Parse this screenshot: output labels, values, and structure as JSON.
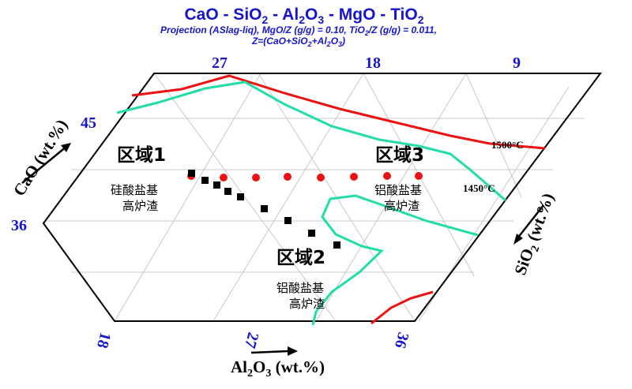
{
  "header": {
    "title_parts": [
      "CaO - SiO",
      "2",
      " - Al",
      "2",
      "O",
      "3",
      " - MgO - TiO",
      "2"
    ],
    "proj_line1": [
      "Projection (ASlag-liq),  MgO/Z (g/g)  = 0.10,  TiO",
      "2",
      "/Z (g/g)  = 0.011,"
    ],
    "proj_line2": [
      "Z=(CaO+SiO",
      "2",
      "+Al",
      "2",
      "O",
      "3",
      ")"
    ]
  },
  "axes": {
    "cao_label": [
      "CaO (wt.%)"
    ],
    "sio2_label": [
      "SiO",
      "2",
      " (wt.%)"
    ],
    "al2o3_label": [
      "Al",
      "2",
      "O",
      "3",
      " (wt.%)"
    ],
    "top_ticks": [
      "27",
      "18",
      "9"
    ],
    "left_ticks": [
      "45",
      "36"
    ],
    "bottom_ticks": [
      "18",
      "27",
      "36"
    ]
  },
  "regions": [
    {
      "name": "区域1",
      "desc_line1": "硅酸盐基",
      "desc_line2": "高炉渣"
    },
    {
      "name": "区域2",
      "desc_line1": "铝酸盐基",
      "desc_line2": "高炉渣"
    },
    {
      "name": "区域3",
      "desc_line1": "铝酸盐基",
      "desc_line2": "高炉渣"
    }
  ],
  "isotherms": [
    {
      "label": "1500°C",
      "color": "#ee1111"
    },
    {
      "label": "1450°C",
      "color": "#22dda8"
    }
  ],
  "markers": {
    "red_dot_color": "#ee1111",
    "black_square_color": "#000000"
  },
  "colors": {
    "frame": "#000000",
    "grid": "#c8c8c8",
    "tick_blue": "#1515d0"
  }
}
